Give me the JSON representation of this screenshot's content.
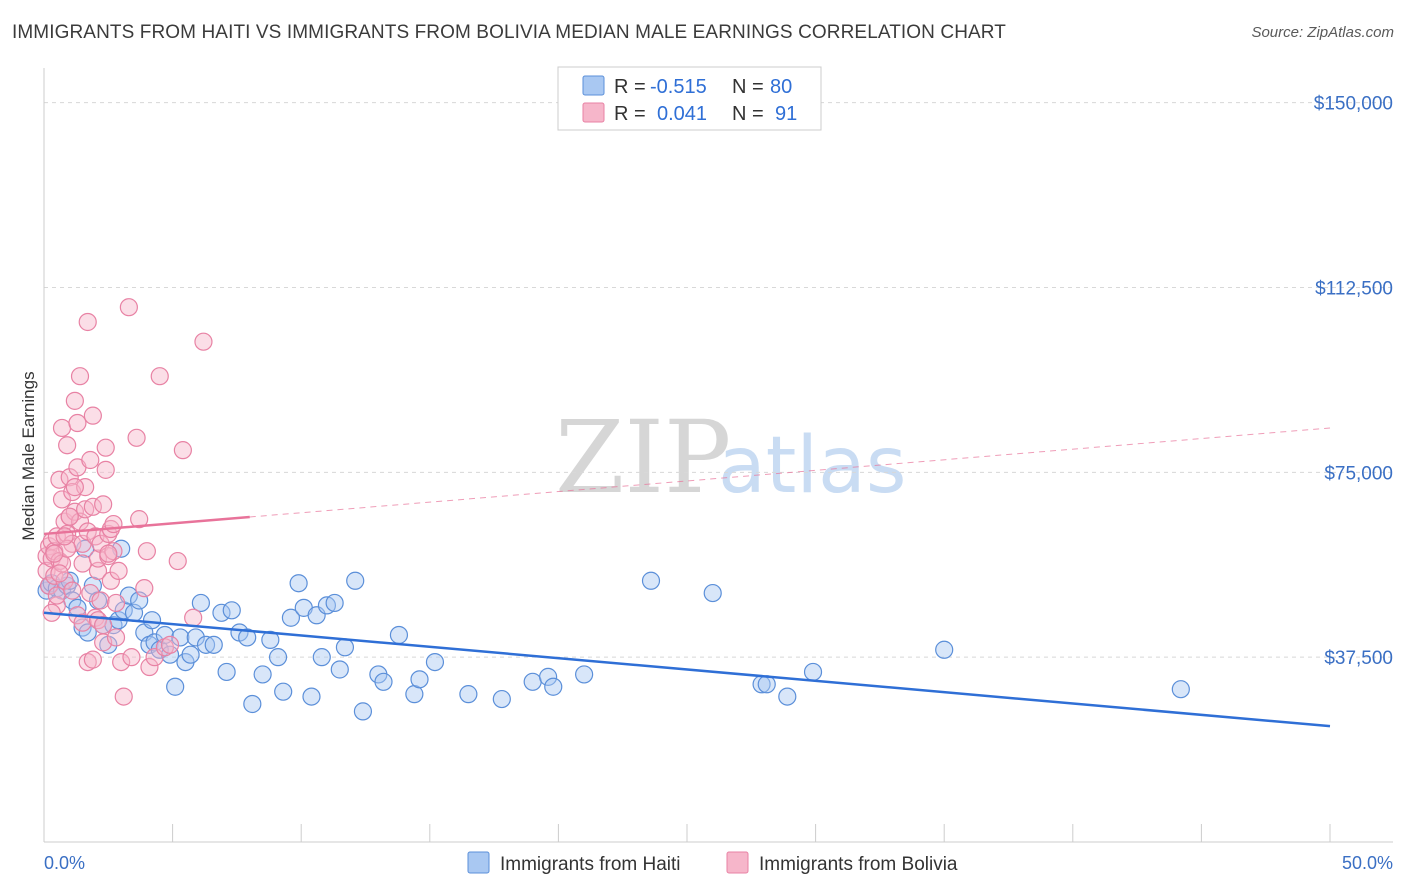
{
  "header": {
    "title": "IMMIGRANTS FROM HAITI VS IMMIGRANTS FROM BOLIVIA MEDIAN MALE EARNINGS CORRELATION CHART",
    "source": "Source: ZipAtlas.com"
  },
  "watermark": {
    "zip": "ZIP",
    "atlas": "atlas"
  },
  "colors": {
    "haiti_fill": "#a9c8f2",
    "haiti_stroke": "#5b8fd9",
    "haiti_line": "#2f6fd6",
    "bolivia_fill": "#f6b6ca",
    "bolivia_stroke": "#e882a4",
    "bolivia_line": "#e8739a",
    "grid": "#d8d8d8",
    "tick_label": "#3a6fc4"
  },
  "legend": {
    "rows": [
      {
        "r_label": "R =",
        "r_value": "-0.515",
        "n_label": "N =",
        "n_value": "80"
      },
      {
        "r_label": "R =",
        "r_value": "0.041",
        "n_label": "N =",
        "n_value": "91"
      }
    ]
  },
  "chart_data": {
    "type": "scatter",
    "title": "IMMIGRANTS FROM HAITI VS IMMIGRANTS FROM BOLIVIA MEDIAN MALE EARNINGS CORRELATION CHART",
    "xlabel": "",
    "ylabel": "Median Male Earnings",
    "xlim": [
      0,
      50
    ],
    "ylim": [
      0,
      155000
    ],
    "x_tick_labels": {
      "left": "0.0%",
      "right": "50.0%"
    },
    "y_ticks": [
      {
        "value": 37500,
        "label": "$37,500"
      },
      {
        "value": 75000,
        "label": "$75,000"
      },
      {
        "value": 112500,
        "label": "$112,500"
      },
      {
        "value": 150000,
        "label": "$150,000"
      }
    ],
    "series": [
      {
        "name": "Immigrants from Haiti",
        "r": -0.515,
        "n": 80,
        "trend": {
          "x0": 0,
          "y0": 46500,
          "x1": 50,
          "y1": 23500,
          "dashed_from": null
        },
        "points": [
          [
            0.1,
            51000
          ],
          [
            0.2,
            52000
          ],
          [
            0.3,
            52500
          ],
          [
            0.5,
            51500
          ],
          [
            0.7,
            51000
          ],
          [
            0.9,
            52000
          ],
          [
            1.0,
            53000
          ],
          [
            1.1,
            49000
          ],
          [
            1.3,
            47500
          ],
          [
            1.5,
            43500
          ],
          [
            1.7,
            42500
          ],
          [
            1.9,
            52000
          ],
          [
            2.1,
            49000
          ],
          [
            2.3,
            44000
          ],
          [
            2.5,
            40000
          ],
          [
            2.7,
            44000
          ],
          [
            2.9,
            45000
          ],
          [
            3.1,
            47000
          ],
          [
            3.3,
            50000
          ],
          [
            3.5,
            46500
          ],
          [
            3.7,
            49000
          ],
          [
            3.9,
            42500
          ],
          [
            4.1,
            40000
          ],
          [
            4.3,
            40500
          ],
          [
            4.5,
            39000
          ],
          [
            4.7,
            42000
          ],
          [
            4.9,
            38000
          ],
          [
            5.1,
            31500
          ],
          [
            5.3,
            41500
          ],
          [
            5.5,
            36500
          ],
          [
            5.7,
            38000
          ],
          [
            5.9,
            41500
          ],
          [
            6.1,
            48500
          ],
          [
            6.3,
            40000
          ],
          [
            6.6,
            40000
          ],
          [
            6.9,
            46500
          ],
          [
            7.1,
            34500
          ],
          [
            7.3,
            47000
          ],
          [
            7.6,
            42500
          ],
          [
            7.9,
            41500
          ],
          [
            8.1,
            28000
          ],
          [
            8.5,
            34000
          ],
          [
            8.8,
            41000
          ],
          [
            9.1,
            37500
          ],
          [
            9.3,
            30500
          ],
          [
            9.6,
            45500
          ],
          [
            9.9,
            52500
          ],
          [
            10.1,
            47500
          ],
          [
            10.4,
            29500
          ],
          [
            10.6,
            46000
          ],
          [
            10.8,
            37500
          ],
          [
            11.0,
            48000
          ],
          [
            11.3,
            48500
          ],
          [
            11.5,
            35000
          ],
          [
            11.7,
            39500
          ],
          [
            12.1,
            53000
          ],
          [
            12.4,
            26500
          ],
          [
            13.0,
            34000
          ],
          [
            13.2,
            32500
          ],
          [
            13.8,
            42000
          ],
          [
            14.4,
            30000
          ],
          [
            14.6,
            33000
          ],
          [
            15.2,
            36500
          ],
          [
            16.5,
            30000
          ],
          [
            17.8,
            29000
          ],
          [
            19.0,
            32500
          ],
          [
            19.6,
            33500
          ],
          [
            19.8,
            31500
          ],
          [
            21.0,
            34000
          ],
          [
            23.6,
            53000
          ],
          [
            26.0,
            50500
          ],
          [
            27.9,
            32000
          ],
          [
            28.1,
            32000
          ],
          [
            28.9,
            29500
          ],
          [
            29.9,
            34500
          ],
          [
            35.0,
            39000
          ],
          [
            44.2,
            31000
          ],
          [
            3.0,
            59500
          ],
          [
            1.6,
            59500
          ],
          [
            4.2,
            45000
          ]
        ]
      },
      {
        "name": "Immigrants from Bolivia",
        "r": 0.041,
        "n": 91,
        "trend": {
          "x0": 0,
          "y0": 62500,
          "x1": 50,
          "y1": 84000,
          "dashed_from": 8.0
        },
        "points": [
          [
            0.1,
            58000
          ],
          [
            0.1,
            55000
          ],
          [
            0.2,
            60000
          ],
          [
            0.2,
            52000
          ],
          [
            0.3,
            57500
          ],
          [
            0.3,
            61000
          ],
          [
            0.4,
            54000
          ],
          [
            0.4,
            59000
          ],
          [
            0.5,
            62000
          ],
          [
            0.5,
            48000
          ],
          [
            0.6,
            57000
          ],
          [
            0.6,
            73500
          ],
          [
            0.7,
            69500
          ],
          [
            0.7,
            84000
          ],
          [
            0.8,
            65000
          ],
          [
            0.8,
            53000
          ],
          [
            0.9,
            62500
          ],
          [
            0.9,
            80500
          ],
          [
            1.0,
            74000
          ],
          [
            1.0,
            66000
          ],
          [
            1.1,
            60500
          ],
          [
            1.1,
            71000
          ],
          [
            1.2,
            67000
          ],
          [
            1.2,
            89500
          ],
          [
            1.3,
            85000
          ],
          [
            1.3,
            76000
          ],
          [
            1.4,
            94500
          ],
          [
            1.4,
            65000
          ],
          [
            1.5,
            60500
          ],
          [
            1.5,
            56500
          ],
          [
            1.6,
            72000
          ],
          [
            1.6,
            67500
          ],
          [
            1.7,
            63000
          ],
          [
            1.7,
            105500
          ],
          [
            1.8,
            77500
          ],
          [
            1.8,
            50500
          ],
          [
            1.9,
            68000
          ],
          [
            1.9,
            86500
          ],
          [
            2.0,
            62000
          ],
          [
            2.0,
            45500
          ],
          [
            2.1,
            55000
          ],
          [
            2.1,
            57500
          ],
          [
            2.2,
            60500
          ],
          [
            2.2,
            49000
          ],
          [
            2.3,
            68500
          ],
          [
            2.3,
            40500
          ],
          [
            2.4,
            80000
          ],
          [
            2.4,
            75500
          ],
          [
            2.5,
            62500
          ],
          [
            2.5,
            58000
          ],
          [
            2.6,
            63500
          ],
          [
            2.6,
            53000
          ],
          [
            2.7,
            64500
          ],
          [
            2.7,
            59000
          ],
          [
            2.8,
            48500
          ],
          [
            2.8,
            41500
          ],
          [
            3.0,
            36500
          ],
          [
            3.1,
            29500
          ],
          [
            3.3,
            108500
          ],
          [
            3.4,
            37500
          ],
          [
            3.6,
            82000
          ],
          [
            3.7,
            65500
          ],
          [
            3.9,
            51500
          ],
          [
            4.0,
            59000
          ],
          [
            4.1,
            35500
          ],
          [
            4.3,
            37500
          ],
          [
            4.5,
            94500
          ],
          [
            4.7,
            39500
          ],
          [
            4.9,
            40000
          ],
          [
            5.2,
            57000
          ],
          [
            5.4,
            79500
          ],
          [
            5.8,
            45500
          ],
          [
            6.2,
            101500
          ],
          [
            0.3,
            46500
          ],
          [
            0.5,
            50000
          ],
          [
            0.7,
            56500
          ],
          [
            0.9,
            59500
          ],
          [
            1.1,
            51000
          ],
          [
            1.3,
            46000
          ],
          [
            1.5,
            44500
          ],
          [
            1.7,
            36500
          ],
          [
            1.9,
            37000
          ],
          [
            2.1,
            45000
          ],
          [
            2.3,
            44000
          ],
          [
            2.5,
            58500
          ],
          [
            2.9,
            55000
          ],
          [
            1.2,
            72000
          ],
          [
            1.0,
            66000
          ],
          [
            0.8,
            62000
          ],
          [
            0.6,
            54500
          ],
          [
            0.4,
            58500
          ]
        ]
      }
    ],
    "legend_position": "top-center"
  },
  "bottom_legend": {
    "items": [
      {
        "label": "Immigrants from Haiti"
      },
      {
        "label": "Immigrants from Bolivia"
      }
    ]
  }
}
